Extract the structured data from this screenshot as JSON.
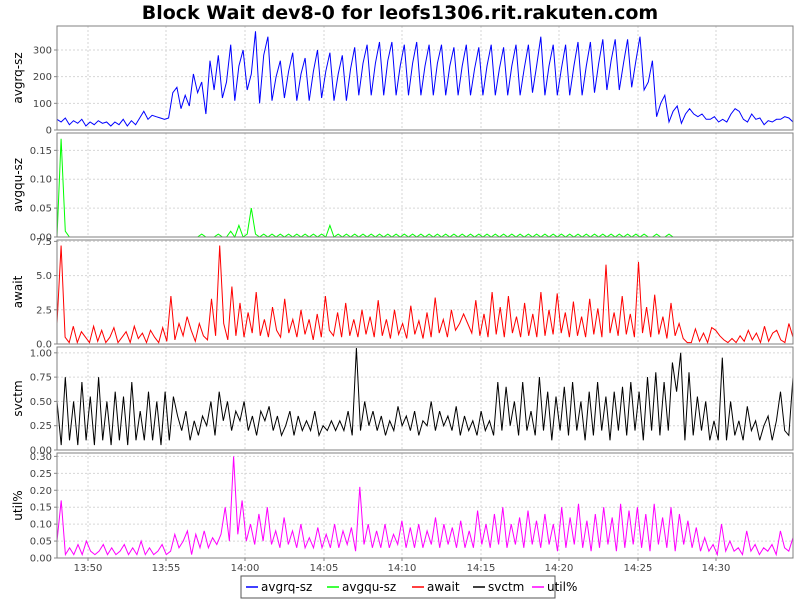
{
  "chart_data": {
    "type": "line",
    "title": "Block Wait dev8-0 for leofs1306.rit.rakuten.com",
    "x_tick_labels": [
      "13:50",
      "13:55",
      "14:00",
      "14:05",
      "14:10",
      "14:15",
      "14:20",
      "14:25",
      "14:30"
    ],
    "grid": true,
    "legend_placement": "bottom-center",
    "legend": [
      "avgrq-sz",
      "avgqu-sz",
      "await",
      "svctm",
      "util%"
    ],
    "panels": [
      {
        "series_name": "avgrq-sz",
        "ylabel": "avgrq-sz",
        "color": "#0000ff",
        "ylim": [
          0,
          390
        ],
        "yticks": [
          0,
          100,
          200,
          300
        ],
        "ytick_labels": [
          "0",
          "100",
          "200",
          "300"
        ],
        "values": [
          40,
          30,
          45,
          20,
          35,
          25,
          40,
          15,
          30,
          20,
          35,
          25,
          30,
          15,
          30,
          20,
          40,
          15,
          35,
          20,
          45,
          70,
          40,
          55,
          50,
          45,
          40,
          45,
          140,
          160,
          80,
          130,
          90,
          210,
          140,
          180,
          60,
          260,
          150,
          280,
          120,
          180,
          320,
          110,
          240,
          300,
          150,
          210,
          370,
          100,
          280,
          350,
          110,
          200,
          260,
          120,
          220,
          290,
          110,
          210,
          270,
          110,
          220,
          300,
          120,
          220,
          290,
          110,
          210,
          280,
          110,
          230,
          310,
          130,
          250,
          320,
          130,
          250,
          330,
          130,
          260,
          330,
          130,
          240,
          320,
          130,
          250,
          330,
          130,
          240,
          320,
          130,
          250,
          320,
          130,
          240,
          310,
          130,
          240,
          320,
          130,
          230,
          310,
          130,
          240,
          320,
          130,
          230,
          310,
          130,
          240,
          320,
          130,
          230,
          320,
          140,
          240,
          350,
          130,
          240,
          320,
          130,
          230,
          320,
          130,
          240,
          330,
          130,
          240,
          330,
          140,
          250,
          340,
          150,
          260,
          340,
          150,
          250,
          340,
          160,
          260,
          350,
          150,
          180,
          260,
          50,
          100,
          130,
          30,
          70,
          90,
          25,
          60,
          80,
          60,
          50,
          60,
          40,
          40,
          50,
          30,
          40,
          30,
          60,
          80,
          70,
          40,
          30,
          60,
          40,
          45,
          20,
          35,
          30,
          40,
          40,
          50,
          45,
          30
        ]
      },
      {
        "series_name": "avgqu-sz",
        "ylabel": "avgqu-sz",
        "color": "#00ff00",
        "ylim": [
          0,
          0.18
        ],
        "yticks": [
          0,
          0.05,
          0.1,
          0.15
        ],
        "ytick_labels": [
          "0.00",
          "0.05",
          "0.10",
          "0.15"
        ],
        "values": [
          0,
          0.17,
          0.01,
          0,
          0,
          0,
          0,
          0,
          0,
          0,
          0,
          0,
          0,
          0,
          0,
          0,
          0,
          0,
          0,
          0,
          0,
          0,
          0,
          0,
          0,
          0,
          0,
          0,
          0,
          0,
          0,
          0,
          0,
          0,
          0,
          0.005,
          0,
          0,
          0,
          0.005,
          0,
          0,
          0.01,
          0,
          0.02,
          0,
          0.005,
          0.05,
          0.005,
          0,
          0.005,
          0,
          0.005,
          0,
          0.005,
          0,
          0.005,
          0,
          0.005,
          0,
          0.005,
          0,
          0.005,
          0,
          0.005,
          0,
          0.02,
          0,
          0.005,
          0,
          0.005,
          0,
          0.005,
          0,
          0.005,
          0,
          0.005,
          0,
          0.005,
          0,
          0.005,
          0,
          0.005,
          0,
          0.005,
          0,
          0.005,
          0,
          0.005,
          0,
          0.005,
          0,
          0.005,
          0,
          0.005,
          0,
          0.005,
          0,
          0.005,
          0,
          0.005,
          0,
          0.005,
          0,
          0.005,
          0,
          0.005,
          0,
          0.005,
          0,
          0.005,
          0,
          0.005,
          0,
          0.005,
          0,
          0.005,
          0,
          0.005,
          0,
          0.005,
          0,
          0.005,
          0,
          0.005,
          0,
          0.005,
          0,
          0.005,
          0,
          0.005,
          0,
          0.005,
          0,
          0.005,
          0,
          0.005,
          0,
          0.005,
          0,
          0.005,
          0,
          0.005,
          0,
          0,
          0.005,
          0,
          0,
          0.005,
          0,
          0,
          0,
          0,
          0,
          0,
          0,
          0,
          0,
          0,
          0,
          0,
          0,
          0,
          0,
          0,
          0,
          0,
          0,
          0,
          0,
          0,
          0,
          0,
          0,
          0,
          0,
          0,
          0,
          0
        ]
      },
      {
        "series_name": "await",
        "ylabel": "await",
        "color": "#ff0000",
        "ylim": [
          0,
          7.6
        ],
        "yticks": [
          0,
          2.5,
          5,
          7.5
        ],
        "ytick_labels": [
          "0.0",
          "2.5",
          "5.0",
          "7.5"
        ],
        "values": [
          1.5,
          7.2,
          0.5,
          0.1,
          1.3,
          0.1,
          0.9,
          0.5,
          0.1,
          1.3,
          0.2,
          1.0,
          0.1,
          0.5,
          1.2,
          0.1,
          0.5,
          0.9,
          0.1,
          1.3,
          0.4,
          0.8,
          0.1,
          1.0,
          0.5,
          0.1,
          1.2,
          0.2,
          3.5,
          0.3,
          1.5,
          0.6,
          2.0,
          1.0,
          0.2,
          1.5,
          0.6,
          0.3,
          3.3,
          0.6,
          7.2,
          1.5,
          0.3,
          4.2,
          0.6,
          3.0,
          0.5,
          2.3,
          0.8,
          3.8,
          0.6,
          1.8,
          0.5,
          2.7,
          1.0,
          0.5,
          3.3,
          0.8,
          1.8,
          0.5,
          2.5,
          0.7,
          1.8,
          0.3,
          2.2,
          0.5,
          3.5,
          1.0,
          0.6,
          2.3,
          0.5,
          3.0,
          0.6,
          1.8,
          0.5,
          2.5,
          0.7,
          2.0,
          0.5,
          3.2,
          0.6,
          1.8,
          0.4,
          2.5,
          0.7,
          1.5,
          0.4,
          2.8,
          0.7,
          1.7,
          0.4,
          2.3,
          0.5,
          3.4,
          0.8,
          1.8,
          0.5,
          2.5,
          1.0,
          1.5,
          2.2,
          1.5,
          0.8,
          3.2,
          0.6,
          2.2,
          0.5,
          3.8,
          0.7,
          2.7,
          0.5,
          3.5,
          0.8,
          2.0,
          0.5,
          3.0,
          0.6,
          2.2,
          0.5,
          3.8,
          0.6,
          2.5,
          0.7,
          3.7,
          0.8,
          2.3,
          0.5,
          3.1,
          0.6,
          2.0,
          0.5,
          3.3,
          0.7,
          2.6,
          0.5,
          5.8,
          0.8,
          2.3,
          0.6,
          3.5,
          0.7,
          2.2,
          0.5,
          6.0,
          0.8,
          2.7,
          0.5,
          3.6,
          0.7,
          2.0,
          0.4,
          3.0,
          0.6,
          1.5,
          0.4,
          0.1,
          0.1,
          1.1,
          0.2,
          0.8,
          0.1,
          1.2,
          1.0,
          0.6,
          0.3,
          0.1,
          0.4,
          0.1,
          0.6,
          0.2,
          1.0,
          0.3,
          0.8,
          0.1,
          1.3,
          0.2,
          0.8,
          1.0,
          0.3,
          0.1,
          1.5,
          0.5
        ]
      },
      {
        "series_name": "svctm",
        "ylabel": "svctm",
        "color": "#000000",
        "ylim": [
          0,
          1.06
        ],
        "yticks": [
          0,
          0.25,
          0.5,
          0.75,
          1
        ],
        "ytick_labels": [
          "0.00",
          "0.25",
          "0.50",
          "0.75",
          "1.00"
        ],
        "values": [
          0.5,
          0.05,
          0.75,
          0.1,
          0.5,
          0.05,
          0.7,
          0.1,
          0.55,
          0.05,
          0.75,
          0.1,
          0.5,
          0.05,
          0.6,
          0.1,
          0.55,
          0.05,
          0.7,
          0.1,
          0.4,
          0.1,
          0.6,
          0.1,
          0.5,
          0.05,
          0.6,
          0.1,
          0.55,
          0.35,
          0.2,
          0.4,
          0.1,
          0.3,
          0.15,
          0.35,
          0.25,
          0.5,
          0.15,
          0.6,
          0.3,
          0.5,
          0.2,
          0.4,
          0.3,
          0.5,
          0.2,
          0.35,
          0.15,
          0.4,
          0.3,
          0.45,
          0.2,
          0.35,
          0.15,
          0.25,
          0.4,
          0.15,
          0.35,
          0.2,
          0.3,
          0.2,
          0.4,
          0.15,
          0.25,
          0.2,
          0.3,
          0.2,
          0.3,
          0.2,
          0.4,
          0.15,
          1.05,
          0.2,
          0.5,
          0.25,
          0.4,
          0.2,
          0.35,
          0.15,
          0.3,
          0.2,
          0.45,
          0.25,
          0.35,
          0.2,
          0.4,
          0.15,
          0.3,
          0.25,
          0.5,
          0.2,
          0.4,
          0.25,
          0.35,
          0.2,
          0.45,
          0.15,
          0.35,
          0.2,
          0.3,
          0.15,
          0.4,
          0.2,
          0.3,
          0.15,
          0.7,
          0.2,
          0.65,
          0.25,
          0.5,
          0.15,
          0.7,
          0.2,
          0.4,
          0.15,
          0.75,
          0.2,
          0.6,
          0.1,
          0.55,
          0.2,
          0.65,
          0.15,
          0.7,
          0.2,
          0.5,
          0.1,
          0.6,
          0.15,
          0.7,
          0.2,
          0.55,
          0.1,
          0.6,
          0.2,
          0.65,
          0.15,
          0.7,
          0.2,
          0.6,
          0.1,
          0.75,
          0.2,
          0.8,
          0.15,
          0.7,
          0.2,
          0.9,
          0.6,
          1.0,
          0.1,
          0.8,
          0.15,
          0.55,
          0.2,
          0.5,
          0.1,
          0.3,
          0.1,
          0.95,
          0.1,
          0.5,
          0.15,
          0.3,
          0.1,
          0.45,
          0.2,
          0.3,
          0.1,
          0.25,
          0.35,
          0.1,
          0.3,
          0.6,
          0.2,
          0.15,
          0.75
        ]
      },
      {
        "series_name": "util%",
        "ylabel": "util%",
        "color": "#ff00ff",
        "ylim": [
          0,
          0.31
        ],
        "yticks": [
          0,
          0.05,
          0.1,
          0.15,
          0.2,
          0.25,
          0.3
        ],
        "ytick_labels": [
          "0.00",
          "0.05",
          "0.10",
          "0.15",
          "0.20",
          "0.25",
          "0.30"
        ],
        "values": [
          0.05,
          0.17,
          0.01,
          0.03,
          0.01,
          0.04,
          0.01,
          0.05,
          0.02,
          0.01,
          0.02,
          0.04,
          0.01,
          0.03,
          0.01,
          0.02,
          0.04,
          0.01,
          0.03,
          0.01,
          0.05,
          0.01,
          0.03,
          0.01,
          0.02,
          0.04,
          0.01,
          0.02,
          0.07,
          0.03,
          0.05,
          0.08,
          0.01,
          0.07,
          0.03,
          0.08,
          0.03,
          0.06,
          0.04,
          0.07,
          0.15,
          0.05,
          0.3,
          0.07,
          0.17,
          0.05,
          0.1,
          0.04,
          0.13,
          0.05,
          0.15,
          0.04,
          0.08,
          0.03,
          0.12,
          0.04,
          0.08,
          0.03,
          0.1,
          0.03,
          0.06,
          0.03,
          0.09,
          0.03,
          0.07,
          0.03,
          0.1,
          0.03,
          0.08,
          0.04,
          0.09,
          0.02,
          0.21,
          0.04,
          0.1,
          0.03,
          0.08,
          0.03,
          0.1,
          0.03,
          0.07,
          0.04,
          0.11,
          0.03,
          0.09,
          0.03,
          0.1,
          0.03,
          0.08,
          0.04,
          0.12,
          0.03,
          0.1,
          0.04,
          0.09,
          0.03,
          0.11,
          0.03,
          0.08,
          0.03,
          0.14,
          0.04,
          0.1,
          0.03,
          0.13,
          0.04,
          0.15,
          0.03,
          0.1,
          0.04,
          0.12,
          0.03,
          0.14,
          0.04,
          0.11,
          0.03,
          0.13,
          0.04,
          0.1,
          0.02,
          0.15,
          0.03,
          0.12,
          0.04,
          0.16,
          0.03,
          0.11,
          0.02,
          0.13,
          0.03,
          0.15,
          0.04,
          0.12,
          0.02,
          0.16,
          0.03,
          0.14,
          0.04,
          0.15,
          0.03,
          0.13,
          0.02,
          0.16,
          0.04,
          0.12,
          0.03,
          0.15,
          0.02,
          0.13,
          0.04,
          0.11,
          0.03,
          0.09,
          0.02,
          0.06,
          0.02,
          0.04,
          0.01,
          0.1,
          0.02,
          0.05,
          0.02,
          0.03,
          0.01,
          0.08,
          0.02,
          0.04,
          0.01,
          0.03,
          0.02,
          0.04,
          0.01,
          0.08,
          0.03,
          0.02,
          0.06
        ]
      }
    ]
  }
}
